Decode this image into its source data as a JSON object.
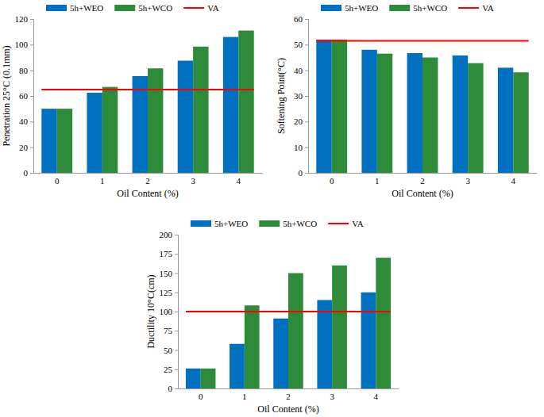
{
  "chart_data": [
    {
      "type": "bar",
      "legend": "top",
      "x_label": "Oil Content (%)",
      "y_label": "Penetration 25°C (0.1mm)",
      "categories": [
        "0",
        "1",
        "2",
        "3",
        "4"
      ],
      "series": [
        {
          "name": "5h+WEO",
          "color": "#0070c0",
          "values": [
            50,
            62.5,
            75.5,
            87.5,
            106
          ]
        },
        {
          "name": "5h+WCO",
          "color": "#2e8b3a",
          "values": [
            50,
            67,
            81.5,
            98.5,
            111
          ]
        },
        {
          "name": "VA",
          "color": "#ff0000",
          "type": "line",
          "values": [
            65,
            65,
            65,
            65,
            65
          ]
        }
      ],
      "ylim": [
        0,
        120
      ],
      "yticks": [
        0,
        20,
        40,
        60,
        80,
        100,
        120
      ]
    },
    {
      "type": "bar",
      "legend": "top",
      "x_label": "Oil Content (%)",
      "y_label": "Softening Point(°C)",
      "categories": [
        "0",
        "1",
        "2",
        "3",
        "4"
      ],
      "series": [
        {
          "name": "5h+WEO",
          "color": "#0070c0",
          "values": [
            52,
            48,
            46.7,
            45.8,
            41
          ]
        },
        {
          "name": "5h+WCO",
          "color": "#2e8b3a",
          "values": [
            52,
            46.5,
            45,
            42.8,
            39.2
          ]
        },
        {
          "name": "VA",
          "color": "#ff0000",
          "type": "line",
          "values": [
            51.5,
            51.5,
            51.5,
            51.5,
            51.5
          ]
        }
      ],
      "ylim": [
        0,
        60
      ],
      "yticks": [
        0,
        10,
        20,
        30,
        40,
        50,
        60
      ]
    },
    {
      "type": "bar",
      "legend": "top",
      "x_label": "Oil Content (%)",
      "y_label": "Ductility 10°C(cm)",
      "categories": [
        "0",
        "1",
        "2",
        "3",
        "4"
      ],
      "series": [
        {
          "name": "5h+WEO",
          "color": "#0070c0",
          "values": [
            26,
            58,
            91,
            115,
            125
          ]
        },
        {
          "name": "5h+WCO",
          "color": "#2e8b3a",
          "values": [
            26,
            108,
            150,
            160,
            170
          ]
        },
        {
          "name": "VA",
          "color": "#ff0000",
          "type": "line",
          "values": [
            100,
            100,
            100,
            100,
            100
          ]
        }
      ],
      "ylim": [
        0,
        200
      ],
      "yticks": [
        0,
        25,
        50,
        75,
        100,
        125,
        150,
        175,
        200
      ]
    }
  ]
}
